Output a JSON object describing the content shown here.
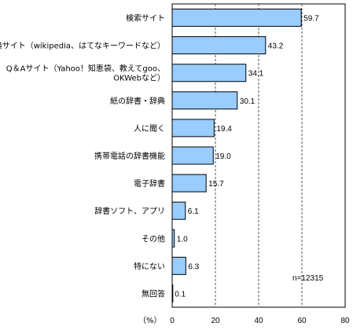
{
  "chart_data": {
    "type": "bar",
    "orientation": "horizontal",
    "categories": [
      [
        "検索サイト"
      ],
      [
        "辞典サイト（wikipedia、はてなキーワードなど）"
      ],
      [
        "Q＆Aサイト（Yahoo！知恵袋、教えてgoo、",
        "OKWebなど）"
      ],
      [
        "紙の辞書・辞典"
      ],
      [
        "人に聞く"
      ],
      [
        "携帯電話の辞書機能"
      ],
      [
        "電子辞書"
      ],
      [
        "辞書ソフト、アプリ"
      ],
      [
        "その他"
      ],
      [
        "特にない"
      ],
      [
        "無回答"
      ]
    ],
    "values": [
      59.7,
      43.2,
      34.1,
      30.1,
      19.4,
      19.0,
      15.7,
      6.1,
      1.0,
      6.3,
      0.1
    ],
    "value_labels": [
      "59.7",
      "43.2",
      "34.1",
      "30.1",
      "19.4",
      "19.0",
      "15.7",
      "6.1",
      "1.0",
      "6.3",
      "0.1"
    ],
    "xlim": [
      0,
      80
    ],
    "xticks": [
      "0",
      "20",
      "40",
      "60",
      "80"
    ],
    "xlabel": "（%）",
    "annotation": "n=12315",
    "grid": "vertical dashed",
    "bar_color": "#99ccff",
    "bar_edge_color": "#000000"
  }
}
